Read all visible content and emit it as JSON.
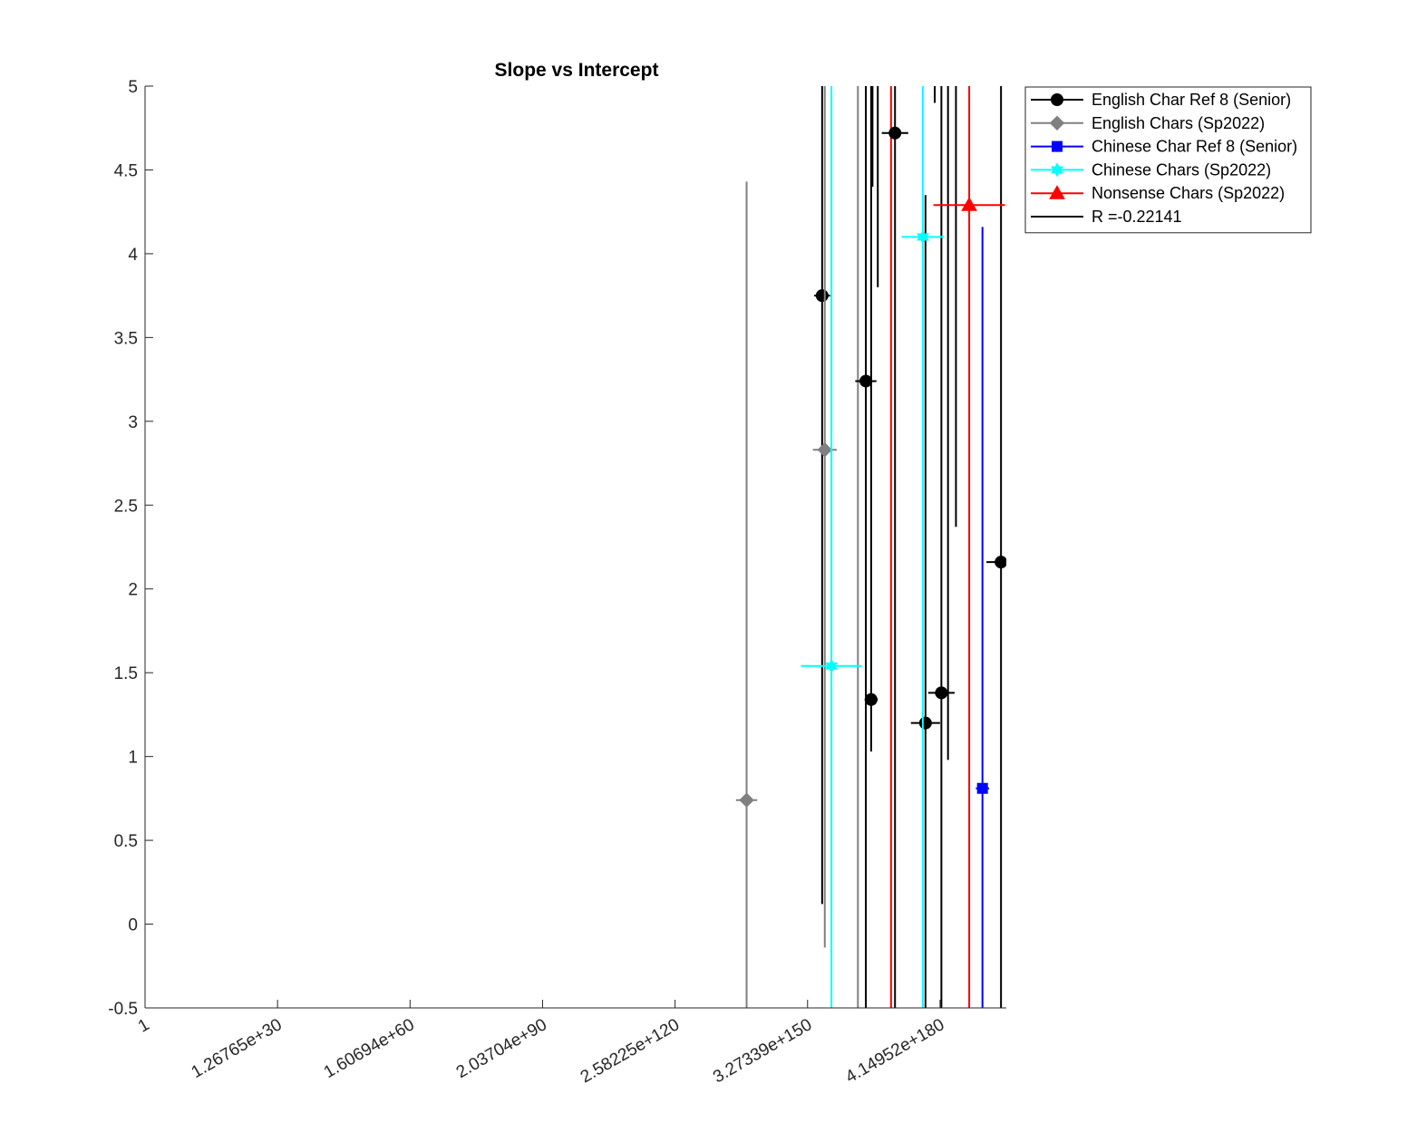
{
  "chart_data": {
    "type": "scatter",
    "title": "Slope vs Intercept",
    "xlabel": "",
    "ylabel": "",
    "x_scale": "log2",
    "x_axis_note": "x tick labels are 2^0, 2^100, 2^200, ... 2^600",
    "xlim_log2": [
      0,
      650
    ],
    "ylim": [
      -0.5,
      5
    ],
    "x_tick_labels": [
      "1",
      "1.26765e+30",
      "1.60694e+60",
      "2.03704e+90",
      "2.58225e+120",
      "3.27339e+150",
      "4.14952e+180"
    ],
    "x_tick_log2": [
      0,
      100,
      200,
      300,
      400,
      500,
      600
    ],
    "y_ticks": [
      -0.5,
      0,
      0.5,
      1,
      1.5,
      2,
      2.5,
      3,
      3.5,
      4,
      4.5,
      5
    ],
    "y_tick_labels": [
      "-0.5",
      "0",
      "0.5",
      "1",
      "1.5",
      "2",
      "2.5",
      "3",
      "3.5",
      "4",
      "4.5",
      "5"
    ],
    "grid": false,
    "legend_position": "outside-top-right",
    "series": [
      {
        "name": "English Char Ref 8 (Senior)",
        "color": "#000000",
        "marker": "circle",
        "points": [
          {
            "x_log2": 511,
            "y": 3.75,
            "xerr_log2": 6,
            "ylo": 0.12,
            "yhi": 5.0
          },
          {
            "x_log2": 544,
            "y": 3.24,
            "xerr_log2": 8,
            "ylo": -0.5,
            "yhi": 5.0
          },
          {
            "x_log2": 548,
            "y": 1.34,
            "xerr_log2": 5,
            "ylo": 1.03,
            "yhi": 5.0
          },
          {
            "x_log2": 566,
            "y": 4.72,
            "xerr_log2": 10,
            "ylo": -0.5,
            "yhi": 5.0
          },
          {
            "x_log2": 589,
            "y": 1.2,
            "xerr_log2": 11,
            "ylo": -0.5,
            "yhi": 4.35
          },
          {
            "x_log2": 601,
            "y": 1.38,
            "xerr_log2": 10,
            "ylo": -0.5,
            "yhi": 5.0
          },
          {
            "x_log2": 646,
            "y": 2.16,
            "xerr_log2": 11,
            "ylo": -0.5,
            "yhi": 5.0
          }
        ]
      },
      {
        "name": "English Chars (Sp2022)",
        "color": "#808080",
        "marker": "diamond",
        "points": [
          {
            "x_log2": 454,
            "y": 0.74,
            "xerr_log2": 8,
            "ylo": -0.5,
            "yhi": 4.43
          },
          {
            "x_log2": 513,
            "y": 2.83,
            "xerr_log2": 9,
            "ylo": -0.14,
            "yhi": 5.0
          }
        ]
      },
      {
        "name": "Chinese Char Ref 8 (Senior)",
        "color": "#0000ff",
        "marker": "square",
        "points": [
          {
            "x_log2": 632,
            "y": 0.81,
            "xerr_log2": 5,
            "ylo": -0.5,
            "yhi": 4.16
          }
        ]
      },
      {
        "name": "Chinese Chars (Sp2022)",
        "color": "#00ffff",
        "marker": "hexagram",
        "points": [
          {
            "x_log2": 518,
            "y": 1.54,
            "xerr_log2": 23,
            "ylo": -0.5,
            "yhi": 5.0
          },
          {
            "x_log2": 587,
            "y": 4.1,
            "xerr_log2": 16,
            "ylo": -0.5,
            "yhi": 5.0
          }
        ]
      },
      {
        "name": "Nonsense Chars (Sp2022)",
        "color": "#ff0000",
        "marker": "triangle",
        "points": [
          {
            "x_log2": 622,
            "y": 4.29,
            "xerr_log2": 27,
            "ylo": -0.5,
            "yhi": 5.0
          }
        ]
      }
    ],
    "extra_vertical_lines": [
      {
        "color": "#808080",
        "x_log2": 538,
        "ylo": -0.5,
        "yhi": 5.0
      },
      {
        "color": "#ff0000",
        "x_log2": 563,
        "ylo": -0.5,
        "yhi": 5.0
      },
      {
        "color": "#000000",
        "x_log2": 549,
        "ylo": 4.4,
        "yhi": 5.0
      },
      {
        "color": "#000000",
        "x_log2": 553,
        "ylo": 3.8,
        "yhi": 5.0
      },
      {
        "color": "#000000",
        "x_log2": 596,
        "ylo": 4.9,
        "yhi": 5.0
      },
      {
        "color": "#000000",
        "x_log2": 606,
        "ylo": 0.98,
        "yhi": 5.0
      },
      {
        "color": "#000000",
        "x_log2": 612,
        "ylo": 2.37,
        "yhi": 5.0
      }
    ],
    "fit_line": {
      "name": "R =-0.22141",
      "color": "#000000"
    }
  },
  "legend": {
    "entries": [
      {
        "label": "English Char Ref 8 (Senior)",
        "color": "#000000",
        "marker": "circle"
      },
      {
        "label": "English Chars (Sp2022)",
        "color": "#808080",
        "marker": "diamond"
      },
      {
        "label": "Chinese Char Ref 8 (Senior)",
        "color": "#0000ff",
        "marker": "square"
      },
      {
        "label": "Chinese Chars (Sp2022)",
        "color": "#00ffff",
        "marker": "hexagram"
      },
      {
        "label": "Nonsense Chars (Sp2022)",
        "color": "#ff0000",
        "marker": "triangle"
      },
      {
        "label": "R =-0.22141",
        "color": "#000000",
        "marker": "none"
      }
    ]
  }
}
